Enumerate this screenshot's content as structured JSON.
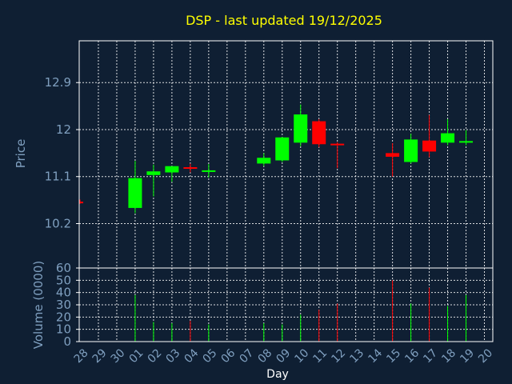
{
  "chart_data": {
    "type": "candlestick",
    "title": "DSP - last updated 19/12/2025",
    "xlabel": "Day",
    "price_panel": {
      "ylabel": "Price",
      "yticks": [
        10.2,
        11.1,
        12,
        12.9
      ],
      "ytick_labels": [
        "10.2",
        "11.1",
        "12",
        "12.9"
      ],
      "ylim": [
        9.35,
        13.7
      ]
    },
    "volume_panel": {
      "ylabel": "Volume (0000)",
      "yticks": [
        0,
        10,
        20,
        30,
        40,
        50,
        60
      ],
      "ytick_labels": [
        "0",
        "10",
        "20",
        "30",
        "40",
        "50",
        "60"
      ],
      "ylim": [
        0,
        60
      ]
    },
    "x_labels": [
      "28",
      "29",
      "30",
      "01",
      "02",
      "03",
      "04",
      "05",
      "06",
      "07",
      "08",
      "09",
      "10",
      "11",
      "12",
      "13",
      "14",
      "15",
      "16",
      "17",
      "18",
      "19",
      "20"
    ],
    "candles": [
      {
        "day": "28",
        "open": 10.62,
        "high": 10.66,
        "low": 10.58,
        "close": 10.6,
        "volume": 0
      },
      {
        "day": "01",
        "open": 10.5,
        "high": 11.4,
        "low": 10.4,
        "close": 11.07,
        "volume": 38
      },
      {
        "day": "02",
        "open": 11.13,
        "high": 11.33,
        "low": 10.72,
        "close": 11.2,
        "volume": 16
      },
      {
        "day": "03",
        "open": 11.18,
        "high": 11.3,
        "low": 11.0,
        "close": 11.3,
        "volume": 15
      },
      {
        "day": "04",
        "open": 11.28,
        "high": 11.35,
        "low": 11.18,
        "close": 11.25,
        "volume": 17
      },
      {
        "day": "05",
        "open": 11.2,
        "high": 11.34,
        "low": 11.08,
        "close": 11.22,
        "volume": 14
      },
      {
        "day": "08",
        "open": 11.35,
        "high": 11.55,
        "low": 11.3,
        "close": 11.46,
        "volume": 15
      },
      {
        "day": "09",
        "open": 11.41,
        "high": 11.86,
        "low": 11.38,
        "close": 11.85,
        "volume": 14
      },
      {
        "day": "10",
        "open": 11.75,
        "high": 12.48,
        "low": 11.68,
        "close": 12.29,
        "volume": 22
      },
      {
        "day": "11",
        "open": 12.16,
        "high": 12.2,
        "low": 11.66,
        "close": 11.72,
        "volume": 26
      },
      {
        "day": "12",
        "open": 11.73,
        "high": 11.76,
        "low": 11.26,
        "close": 11.7,
        "volume": 31
      },
      {
        "day": "15",
        "open": 11.55,
        "high": 11.74,
        "low": 11.1,
        "close": 11.48,
        "volume": 50
      },
      {
        "day": "16",
        "open": 11.38,
        "high": 11.92,
        "low": 11.35,
        "close": 11.81,
        "volume": 31
      },
      {
        "day": "17",
        "open": 11.79,
        "high": 12.28,
        "low": 11.47,
        "close": 11.58,
        "volume": 44
      },
      {
        "day": "18",
        "open": 11.75,
        "high": 12.2,
        "low": 11.7,
        "close": 11.93,
        "volume": 29
      },
      {
        "day": "19",
        "open": 11.78,
        "high": 11.99,
        "low": 11.7,
        "close": 11.78,
        "volume": 38
      }
    ],
    "up_color": "#00ff00",
    "down_color": "#ff0000",
    "grid": true
  },
  "colors": {
    "background": "#0f1f33",
    "plot_background": "#0f1f33",
    "axis": "#ffffff",
    "grid": "#ffffff",
    "title": "#ffff00",
    "labels": "#7f9fbf"
  }
}
